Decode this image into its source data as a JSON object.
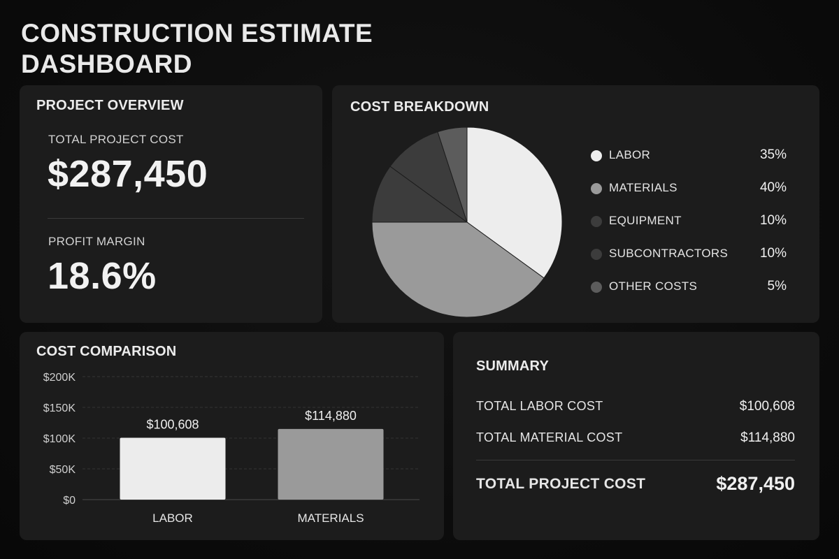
{
  "title": "CONSTRUCTION ESTIMATE DASHBOARD",
  "overview": {
    "title": "PROJECT OVERVIEW",
    "total_label": "TOTAL PROJECT COST",
    "total_value": "$287,450",
    "margin_label": "PROFIT MARGIN",
    "margin_value": "18.6%"
  },
  "breakdown": {
    "title": "COST BREAKDOWN",
    "items": [
      {
        "label": "LABOR",
        "pct_text": "35%",
        "color": "#ededed"
      },
      {
        "label": "MATERIALS",
        "pct_text": "40%",
        "color": "#9a9a9a"
      },
      {
        "label": "EQUIPMENT",
        "pct_text": "10%",
        "color": "#3c3c3c"
      },
      {
        "label": "SUBCONTRACTORS",
        "pct_text": "10%",
        "color": "#3c3c3c"
      },
      {
        "label": "OTHER COSTS",
        "pct_text": "5%",
        "color": "#5c5c5c"
      }
    ]
  },
  "comparison": {
    "title": "COST COMPARISON"
  },
  "summary": {
    "title": "SUMMARY",
    "rows": [
      {
        "label": "TOTAL LABOR COST",
        "value": "$100,608"
      },
      {
        "label": "TOTAL MATERIAL COST",
        "value": "$114,880"
      }
    ],
    "total_label": "TOTAL PROJECT COST",
    "total_value": "$287,450"
  },
  "chart_data": [
    {
      "type": "pie",
      "title": "COST BREAKDOWN",
      "categories": [
        "LABOR",
        "MATERIALS",
        "EQUIPMENT",
        "SUBCONTRACTORS",
        "OTHER COSTS"
      ],
      "values": [
        35,
        40,
        10,
        10,
        5
      ],
      "colors": [
        "#ededed",
        "#9a9a9a",
        "#3c3c3c",
        "#3c3c3c",
        "#5c5c5c"
      ],
      "legend": "right"
    },
    {
      "type": "bar",
      "title": "COST COMPARISON",
      "categories": [
        "LABOR",
        "MATERIALS"
      ],
      "values": [
        100608,
        114880
      ],
      "value_labels": [
        "$100,608",
        "$114,880"
      ],
      "colors": [
        "#ececec",
        "#9a9a9a"
      ],
      "yticks": [
        "$0",
        "$50K",
        "$100K",
        "$150K",
        "$200K"
      ],
      "ylim": [
        0,
        200000
      ],
      "grid": true
    }
  ]
}
